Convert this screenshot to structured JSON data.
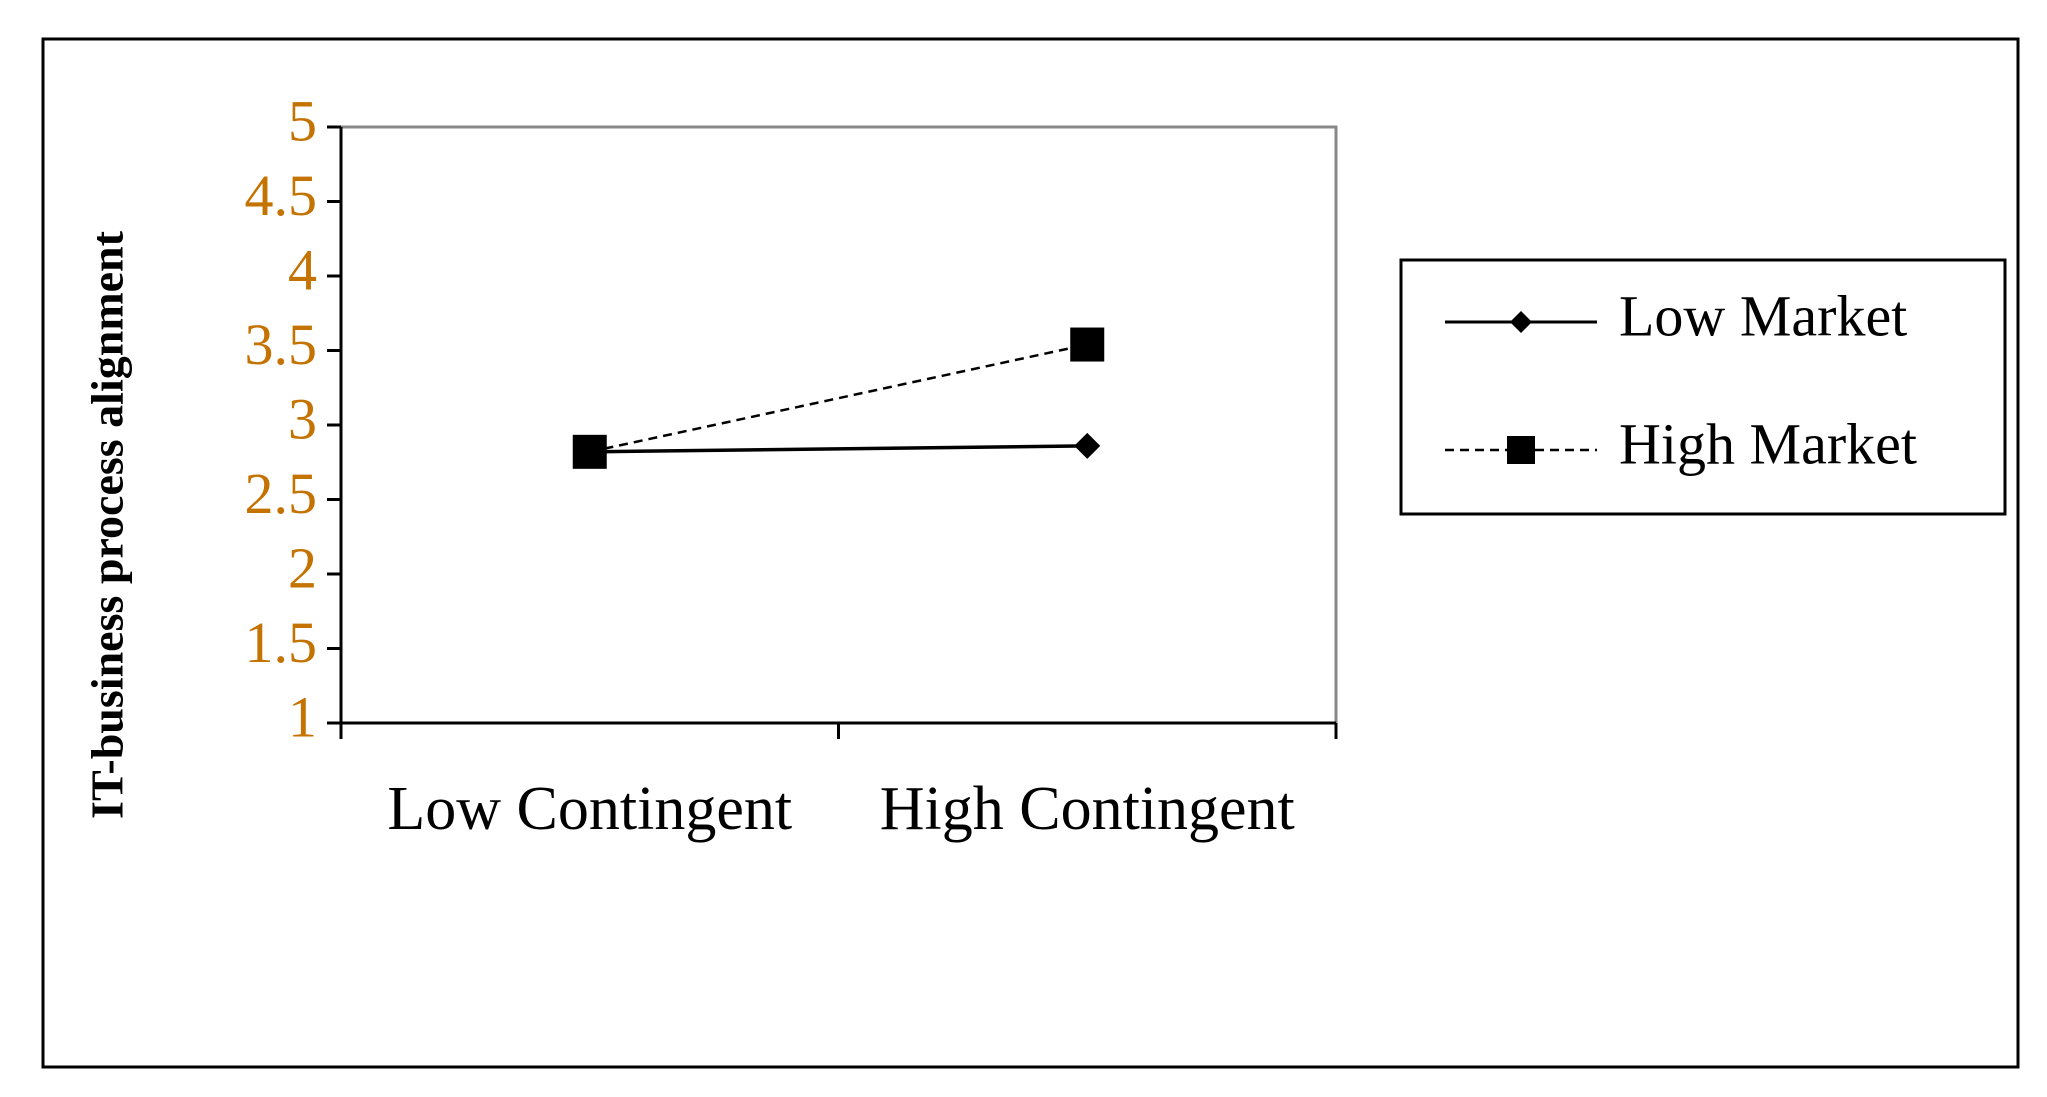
{
  "chart_data": {
    "type": "line",
    "y_axis_label": "IT-business process alignment",
    "categories": [
      "Low Contingent",
      "High Contingent"
    ],
    "series": [
      {
        "name": "Low Market",
        "color": "#000000",
        "marker": "diamond",
        "dashed": false,
        "values": [
          2.82,
          2.86
        ]
      },
      {
        "name": "High Market",
        "color": "#000000",
        "marker": "square",
        "dashed": true,
        "values": [
          2.82,
          3.54
        ]
      }
    ],
    "ylim": [
      1,
      5
    ],
    "yticks": [
      1,
      1.5,
      2,
      2.5,
      3,
      3.5,
      4,
      4.5,
      5
    ],
    "tick_label_color": "#c47200",
    "grid": false,
    "legend": "right"
  }
}
